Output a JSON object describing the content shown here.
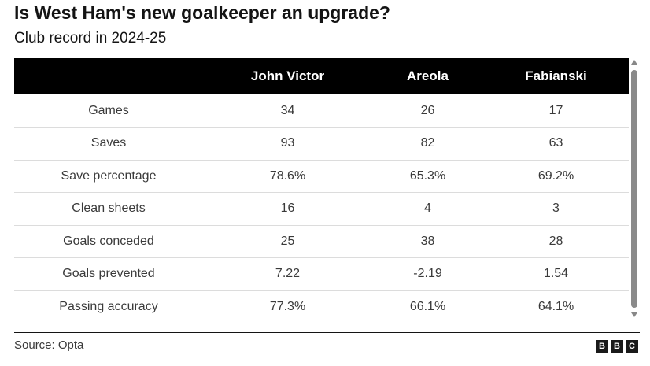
{
  "header": {
    "title": "Is West Ham's new goalkeeper an upgrade?",
    "subtitle": "Club record in 2024-25"
  },
  "chart_data": {
    "type": "table",
    "columns": [
      "",
      "John Victor",
      "Areola",
      "Fabianski"
    ],
    "rows": [
      [
        "Games",
        "34",
        "26",
        "17"
      ],
      [
        "Saves",
        "93",
        "82",
        "63"
      ],
      [
        "Save percentage",
        "78.6%",
        "65.3%",
        "69.2%"
      ],
      [
        "Clean sheets",
        "16",
        "4",
        "3"
      ],
      [
        "Goals conceded",
        "25",
        "38",
        "28"
      ],
      [
        "Goals prevented",
        "7.22",
        "-2.19",
        "1.54"
      ],
      [
        "Passing accuracy",
        "77.3%",
        "66.1%",
        "64.1%"
      ]
    ]
  },
  "footer": {
    "source": "Source: Opta",
    "logo_letters": [
      "B",
      "B",
      "C"
    ]
  }
}
